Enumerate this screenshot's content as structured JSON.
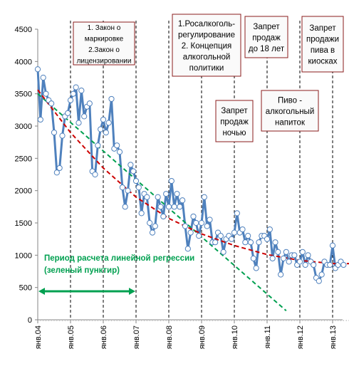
{
  "chart_data": {
    "type": "line",
    "title": "",
    "xlabel": "",
    "ylabel": "",
    "ylim": [
      0,
      4500
    ],
    "yticks": [
      0,
      500,
      1000,
      1500,
      2000,
      2500,
      3000,
      3500,
      4000,
      4500
    ],
    "x_tick_labels": [
      "янв.04",
      "янв.05",
      "янв.06",
      "янв.07",
      "янв.08",
      "янв.09",
      "янв.10",
      "янв.11",
      "янв.12",
      "янв.13"
    ],
    "x_start": "2004-01",
    "grid": "vertical dashed lines at each January",
    "series": [
      {
        "kind": "monthly data (markers)",
        "color": "#4f81bd",
        "values": [
          3880,
          3100,
          3750,
          3500,
          3400,
          3350,
          2900,
          2280,
          2350,
          2850,
          3150,
          3200,
          3400,
          3500,
          3600,
          3050,
          3550,
          3150,
          3300,
          3350,
          2300,
          2250,
          2700,
          2950,
          3100,
          2900,
          3050,
          3420,
          2650,
          2700,
          2600,
          2050,
          1750,
          2000,
          2400,
          2300,
          2150,
          2050,
          1650,
          1950,
          1900,
          1500,
          1350,
          1450,
          1900,
          1750,
          1600,
          1950,
          1750,
          2150,
          1750,
          1950,
          1750,
          1850,
          1450,
          1100,
          1350,
          1600,
          1500,
          1300,
          1500,
          1900,
          1450,
          1550,
          1200,
          1200,
          1350,
          1300,
          1050,
          1250,
          1300,
          1250,
          1350,
          1650,
          1350,
          1400,
          1200,
          1300,
          1200,
          950,
          800,
          1200,
          1300,
          1300,
          1250,
          1400,
          950,
          1200,
          1050,
          700,
          950,
          1050,
          900,
          1000,
          1000,
          850,
          900,
          1050,
          850,
          1000,
          900,
          850,
          650,
          600,
          700,
          900,
          850,
          850,
          1150,
          800,
          850,
          900,
          850
        ]
      },
      {
        "kind": "linear regression trend (green dashed)",
        "color": "#00a050",
        "x_end": "2011-08",
        "values_at_start_end": [
          3500,
          140
        ]
      },
      {
        "kind": "polynomial trend (red dashed)",
        "color": "#cc0000",
        "points": [
          [
            0,
            3560
          ],
          [
            12,
            2900
          ],
          [
            24,
            2350
          ],
          [
            36,
            1900
          ],
          [
            48,
            1570
          ],
          [
            60,
            1330
          ],
          [
            72,
            1150
          ],
          [
            84,
            1010
          ],
          [
            96,
            920
          ],
          [
            108,
            870
          ],
          [
            114,
            870
          ]
        ]
      }
    ],
    "annotations": [
      {
        "lines": [
          "1. Закон о",
          "маркировке",
          "2.Закон о",
          "лицензировании"
        ]
      },
      {
        "lines": [
          "1.Росалкоголь-",
          "регулирование",
          "2. Концепция",
          "алкогольной",
          "политики"
        ]
      },
      {
        "lines": [
          "Запрет",
          "продаж",
          "до 18 лет"
        ]
      },
      {
        "lines": [
          "Запрет",
          "продажи",
          "пива в",
          "киосках"
        ]
      },
      {
        "lines": [
          "Запрет",
          "продаж",
          "ночью"
        ]
      },
      {
        "lines": [
          "Пиво -",
          "алкогольный",
          "напиток"
        ]
      }
    ],
    "regression_note": {
      "lines": [
        "Период расчета линейной регрессии",
        "(зеленый пунктир)"
      ],
      "color": "#00a050"
    }
  }
}
